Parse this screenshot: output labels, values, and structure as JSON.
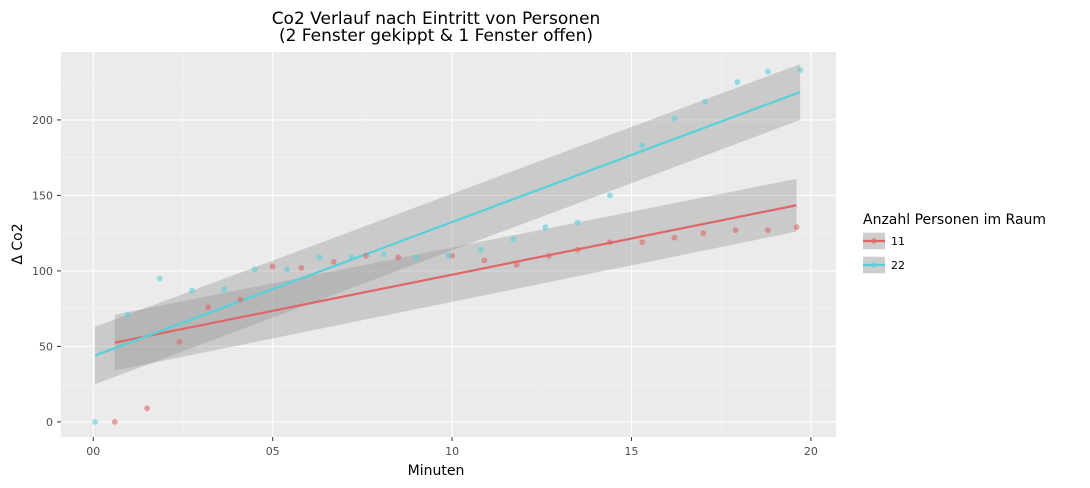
{
  "chart_data": {
    "type": "scatter",
    "title_line1": "Co2 Verlauf nach Eintritt von Personen",
    "title_line2": "(2 Fenster gekippt & 1 Fenster offen)",
    "xlabel": "Minuten",
    "ylabel": "Δ Co2",
    "xlim": [
      -0.9,
      20.7
    ],
    "ylim": [
      -10,
      245
    ],
    "x_ticks": [
      {
        "value": 0,
        "label": "00"
      },
      {
        "value": 5,
        "label": "05"
      },
      {
        "value": 10,
        "label": "10"
      },
      {
        "value": 15,
        "label": "15"
      },
      {
        "value": 20,
        "label": "20"
      }
    ],
    "y_ticks": [
      0,
      50,
      100,
      150,
      200
    ],
    "grid": true,
    "legend": {
      "title": "Anzahl Personen im Raum",
      "position": "right"
    },
    "series": [
      {
        "name": "11",
        "color": "#E06666",
        "points": [
          [
            0.6,
            0
          ],
          [
            1.5,
            9
          ],
          [
            2.4,
            53
          ],
          [
            3.2,
            76
          ],
          [
            4.1,
            81
          ],
          [
            5.0,
            103
          ],
          [
            5.8,
            102
          ],
          [
            6.7,
            106
          ],
          [
            7.6,
            110
          ],
          [
            8.5,
            109
          ],
          [
            10.0,
            110
          ],
          [
            10.9,
            107
          ],
          [
            11.8,
            104
          ],
          [
            12.7,
            110
          ],
          [
            13.5,
            114
          ],
          [
            14.4,
            119
          ],
          [
            15.3,
            119
          ],
          [
            16.2,
            122
          ],
          [
            17.0,
            125
          ],
          [
            17.9,
            127
          ],
          [
            18.8,
            127
          ],
          [
            19.6,
            129
          ]
        ],
        "fit": {
          "x": [
            0.6,
            19.6
          ],
          "y": [
            52.5,
            143.5
          ]
        },
        "band": {
          "x": [
            0.6,
            19.6
          ],
          "upper": [
            71,
            161
          ],
          "lower": [
            34,
            126
          ]
        }
      },
      {
        "name": "22",
        "color": "#56D1DA",
        "points": [
          [
            0.05,
            0
          ],
          [
            0.95,
            71
          ],
          [
            1.85,
            95
          ],
          [
            2.75,
            87
          ],
          [
            3.65,
            88
          ],
          [
            4.5,
            101
          ],
          [
            5.4,
            101
          ],
          [
            6.3,
            109
          ],
          [
            7.2,
            109
          ],
          [
            8.1,
            111
          ],
          [
            9.0,
            109
          ],
          [
            9.9,
            110
          ],
          [
            10.8,
            114
          ],
          [
            11.7,
            121
          ],
          [
            12.6,
            129
          ],
          [
            13.5,
            132
          ],
          [
            14.4,
            150
          ],
          [
            15.3,
            183
          ],
          [
            16.2,
            201
          ],
          [
            17.05,
            212
          ],
          [
            17.95,
            225
          ],
          [
            18.8,
            232
          ],
          [
            19.7,
            233
          ]
        ],
        "fit": {
          "x": [
            0.05,
            19.7
          ],
          "y": [
            44,
            218.5
          ]
        },
        "band": {
          "x": [
            0.05,
            19.7
          ],
          "upper": [
            63,
            237
          ],
          "lower": [
            25,
            200
          ]
        }
      }
    ]
  }
}
